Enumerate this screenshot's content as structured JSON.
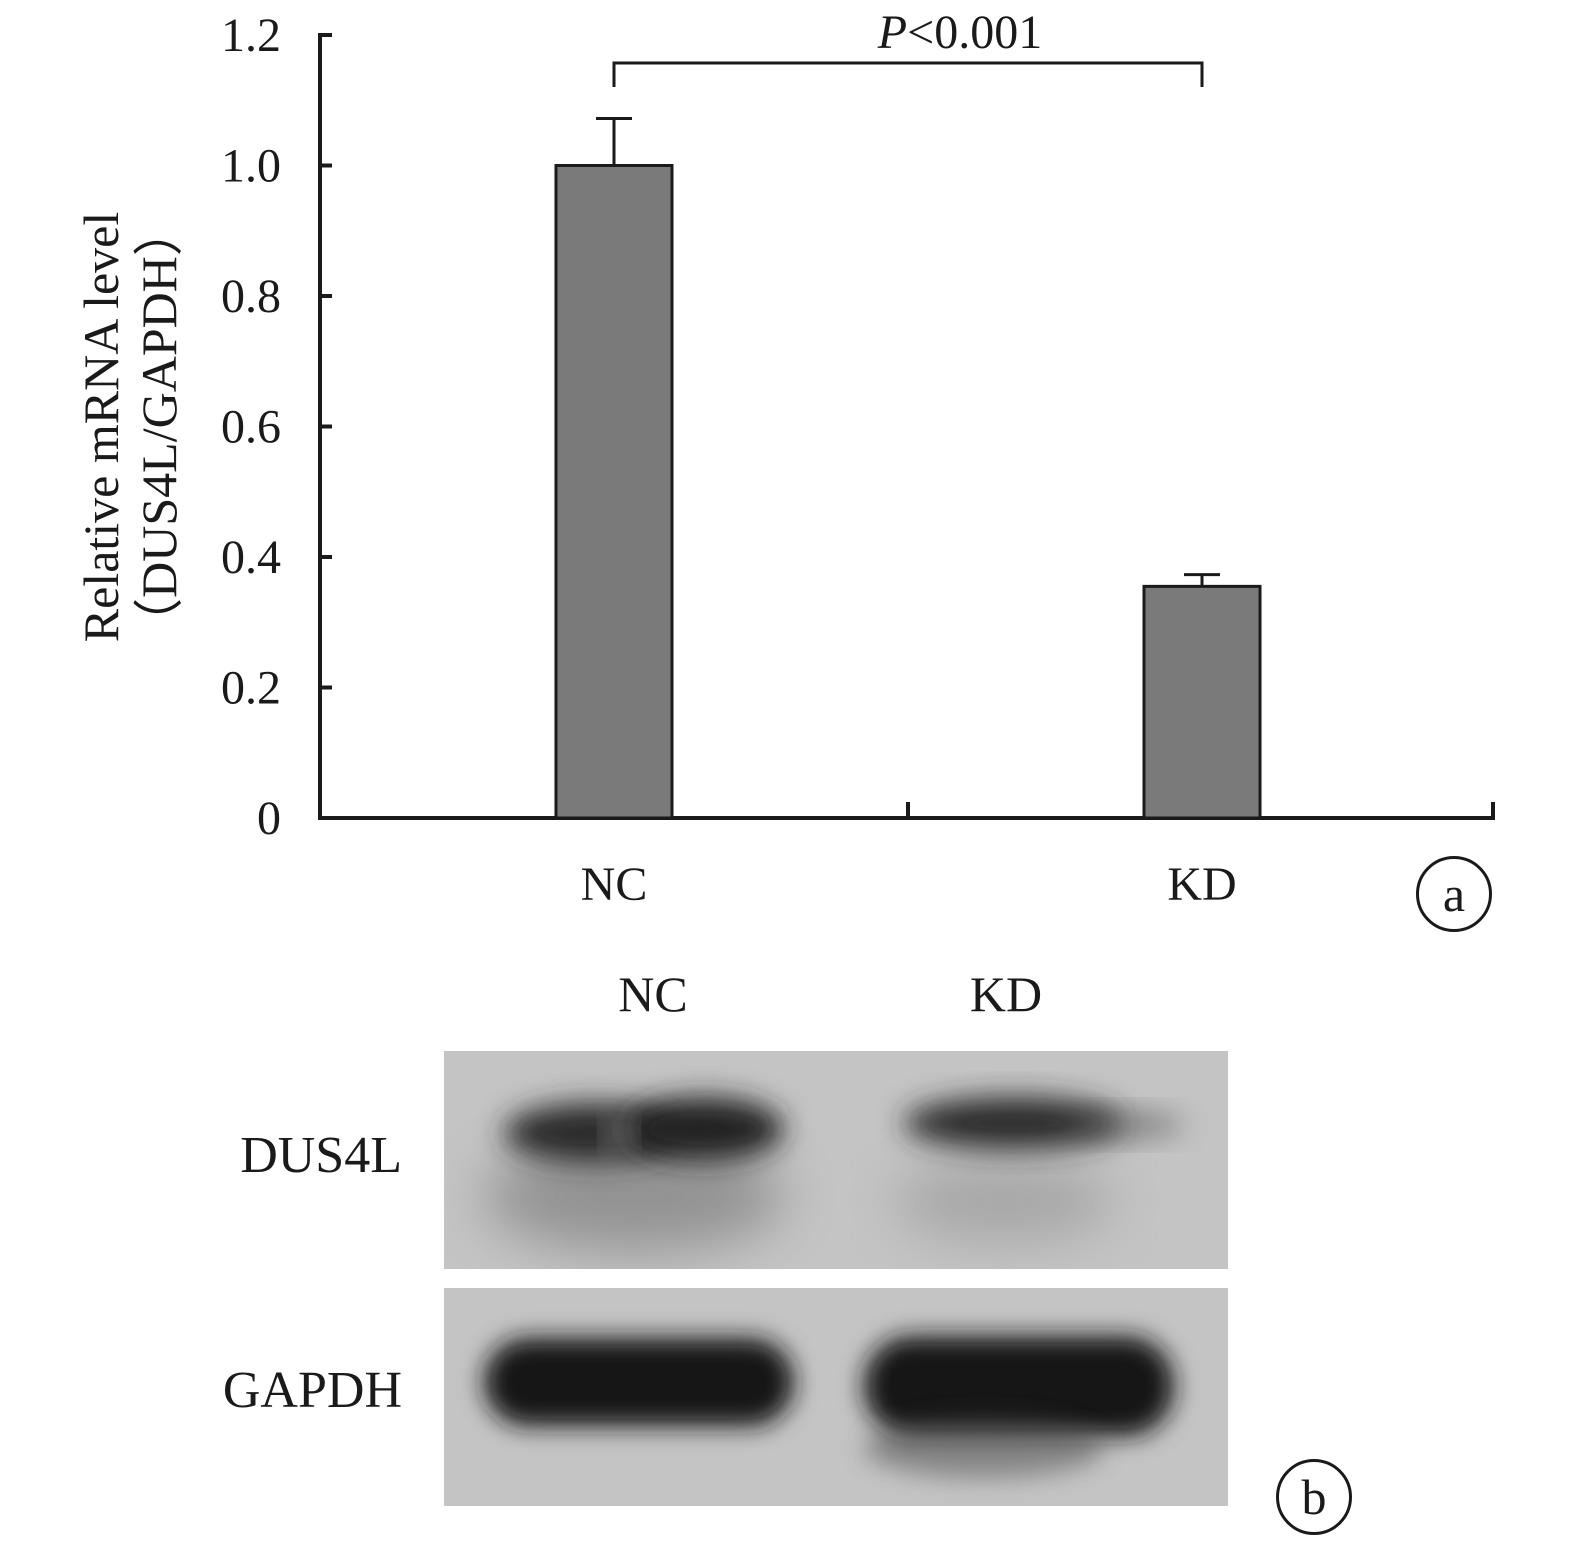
{
  "chart_data": {
    "type": "bar",
    "categories": [
      "NC",
      "KD"
    ],
    "values": [
      1.0,
      0.355
    ],
    "errors": [
      0.072,
      0.018
    ],
    "ylabel_line1": "Relative mRNA level",
    "ylabel_line2": "（DUS4L/GAPDH）",
    "ylim": [
      0,
      1.2
    ],
    "yticks": [
      "0",
      "0.2",
      "0.4",
      "0.6",
      "0.8",
      "1.0",
      "1.2"
    ],
    "yticks_values": [
      0,
      0.2,
      0.4,
      0.6,
      0.8,
      1.0,
      1.2
    ],
    "significance": {
      "italic": "P",
      "rest": "<0.001"
    },
    "bar_color": "#7a7a7a",
    "panel_label": "a"
  },
  "blot": {
    "columns": [
      "NC",
      "KD"
    ],
    "rows": [
      "DUS4L",
      "GAPDH"
    ],
    "panel_label": "b",
    "background": "#c4c4c4",
    "band_color": "#1c1c1c"
  }
}
